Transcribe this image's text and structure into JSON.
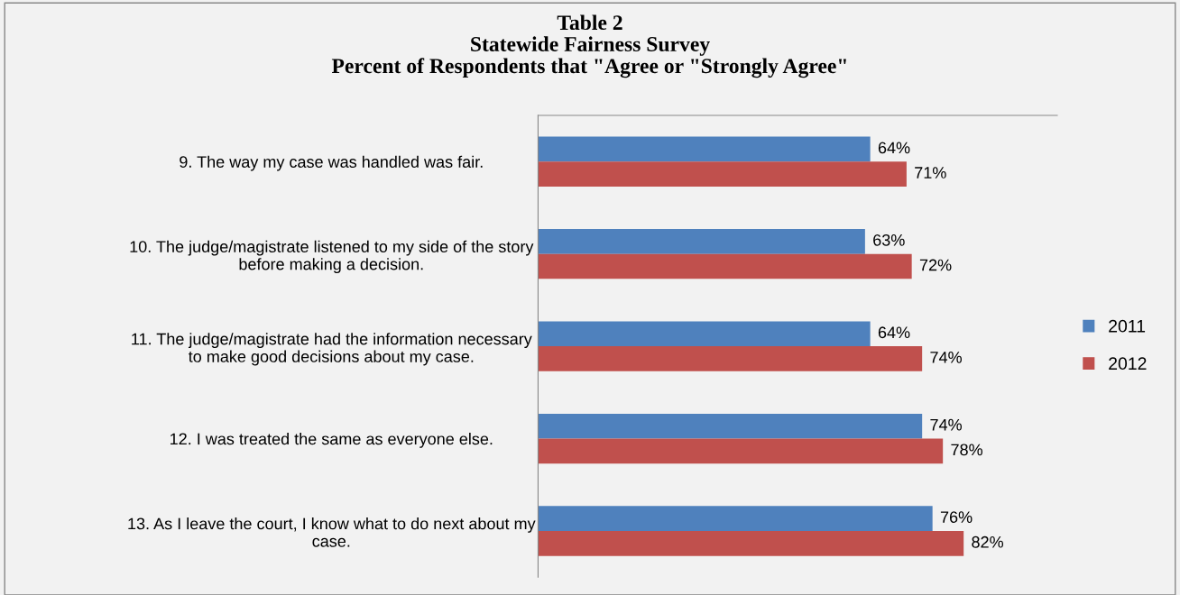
{
  "chart_data": {
    "type": "bar",
    "orientation": "horizontal",
    "title": "Table 2\nStatewide Fairness Survey\nPercent of Respondents that \"Agree or \"Strongly Agree\"",
    "categories": [
      "9. The way my case was handled was fair.",
      "10. The judge/magistrate listened to my side of the story\nbefore making a decision.",
      "11. The judge/magistrate had the information necessary\nto make good decisions about my case.",
      "12. I was treated the same as everyone else.",
      "13. As I leave the court, I know what to do next about my\ncase."
    ],
    "series": [
      {
        "name": "2011",
        "color": "#4f81bd",
        "values": [
          64,
          63,
          64,
          74,
          76
        ],
        "value_labels": [
          "64%",
          "63%",
          "64%",
          "74%",
          "76%"
        ]
      },
      {
        "name": "2012",
        "color": "#c0504d",
        "values": [
          71,
          72,
          74,
          78,
          82
        ],
        "value_labels": [
          "71%",
          "72%",
          "74%",
          "78%",
          "82%"
        ]
      }
    ],
    "legend": "right",
    "grid": false
  }
}
